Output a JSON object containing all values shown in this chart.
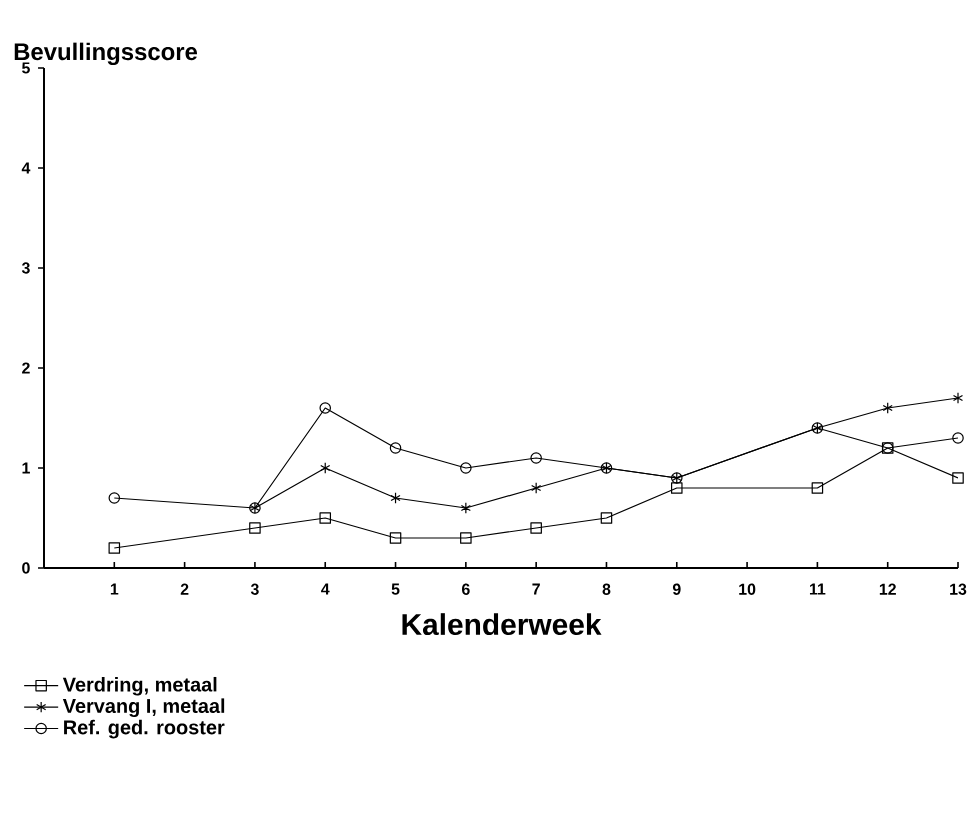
{
  "chart_data": {
    "type": "line",
    "ylabel": "Bevullingsscore",
    "xlabel": "Kalenderweek",
    "xlim": [
      0,
      13
    ],
    "xticks": [
      1,
      2,
      3,
      4,
      5,
      6,
      7,
      8,
      9,
      10,
      11,
      12,
      13
    ],
    "ylim": [
      0,
      5
    ],
    "yticks": [
      0,
      1,
      2,
      3,
      4,
      5
    ],
    "grid": false,
    "legend": "bottom left",
    "line_style": "solid",
    "series": [
      {
        "name": "Verdring, metaal",
        "color": "#000000",
        "marker": "square",
        "x": [
          1,
          3,
          4,
          5,
          6,
          7,
          8,
          9,
          11,
          12,
          13
        ],
        "values": [
          0.2,
          0.4,
          0.5,
          0.3,
          0.3,
          0.4,
          0.5,
          0.8,
          0.8,
          1.2,
          0.9
        ]
      },
      {
        "name": "Vervang I, metaal",
        "color": "#000000",
        "marker": "cross",
        "x": [
          3,
          4,
          5,
          6,
          7,
          8,
          9,
          11,
          12,
          13
        ],
        "values": [
          0.6,
          1.0,
          0.7,
          0.6,
          0.8,
          1.0,
          0.9,
          1.4,
          1.6,
          1.7
        ]
      },
      {
        "name": "Ref. ged.  rooster",
        "color": "#000000",
        "marker": "circle",
        "x": [
          1,
          3,
          4,
          5,
          6,
          7,
          8,
          9,
          11,
          12,
          13
        ],
        "values": [
          0.7,
          0.6,
          1.6,
          1.2,
          1.0,
          1.1,
          1.0,
          0.9,
          1.4,
          1.2,
          1.3
        ]
      }
    ]
  }
}
